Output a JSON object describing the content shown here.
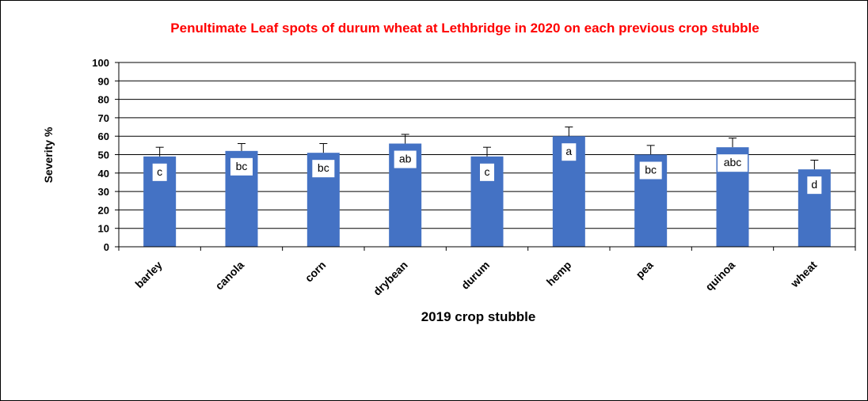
{
  "chart_data": {
    "type": "bar",
    "title": "Penultimate Leaf spots of durum wheat at Lethbridge in 2020 on each previous crop stubble",
    "xlabel": "2019 crop stubble",
    "ylabel": "Severity %",
    "ylim": [
      0,
      100
    ],
    "yticks": [
      "0",
      "10",
      "20",
      "30",
      "40",
      "50",
      "60",
      "70",
      "80",
      "90",
      "100"
    ],
    "grid": true,
    "legend": "none",
    "categories": [
      "barley",
      "canola",
      "corn",
      "drybean",
      "durum",
      "hemp",
      "pea",
      "quinoa",
      "wheat"
    ],
    "values": [
      49,
      52,
      51,
      56,
      49,
      60,
      50,
      54,
      42
    ],
    "error_upper": [
      54,
      56,
      56,
      61,
      54,
      65,
      55,
      59,
      47
    ],
    "significance_labels": [
      "c",
      "bc",
      "bc",
      "ab",
      "c",
      "a",
      "bc",
      "abc",
      "d"
    ],
    "colors": {
      "bar": "#4472c4",
      "title": "#ff0000"
    }
  }
}
